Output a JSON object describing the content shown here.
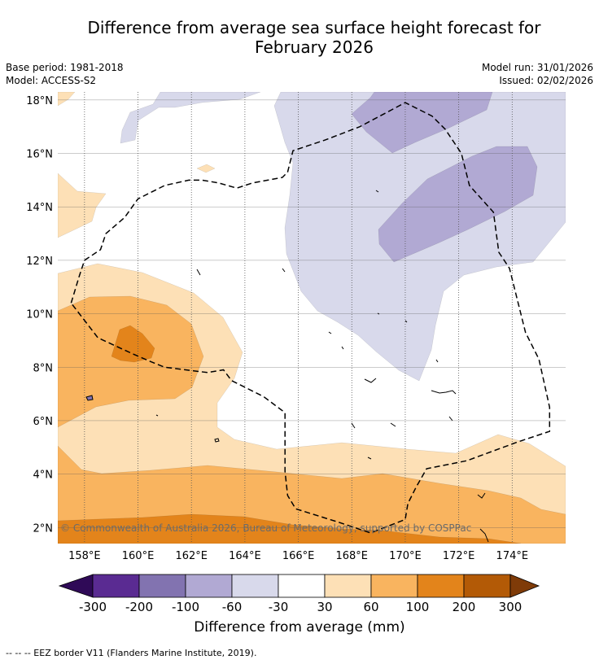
{
  "title": {
    "line1": "Difference from average sea surface height forecast for",
    "line2": "February 2026"
  },
  "info": {
    "base_period": "Base period: 1981-2018",
    "model": "Model: ACCESS-S2",
    "model_run": "Model run: 31/01/2026",
    "issued": "Issued: 02/02/2026"
  },
  "map": {
    "lon_range": [
      157,
      176
    ],
    "lat_range": [
      1.4,
      18.3
    ],
    "lon_ticks": [
      {
        "value": 158,
        "label": "158°E"
      },
      {
        "value": 160,
        "label": "160°E"
      },
      {
        "value": 162,
        "label": "162°E"
      },
      {
        "value": 164,
        "label": "164°E"
      },
      {
        "value": 166,
        "label": "166°E"
      },
      {
        "value": 168,
        "label": "168°E"
      },
      {
        "value": 170,
        "label": "170°E"
      },
      {
        "value": 172,
        "label": "172°E"
      },
      {
        "value": 174,
        "label": "174°E"
      }
    ],
    "lat_ticks": [
      {
        "value": 2,
        "label": "2°N"
      },
      {
        "value": 4,
        "label": "4°N"
      },
      {
        "value": 6,
        "label": "6°N"
      },
      {
        "value": 8,
        "label": "8°N"
      },
      {
        "value": 10,
        "label": "10°N"
      },
      {
        "value": 12,
        "label": "12°N"
      },
      {
        "value": 14,
        "label": "14°N"
      },
      {
        "value": 16,
        "label": "16°N"
      },
      {
        "value": 18,
        "label": "18°N"
      }
    ],
    "copyright": "© Commonwealth of Australia 2026, Bureau of Meteorology, supported by COSPPac",
    "eez_border": [
      [
        157.5,
        10.4
      ],
      [
        157.8,
        11.4
      ],
      [
        158,
        12
      ],
      [
        158.6,
        12.4
      ],
      [
        158.8,
        13
      ],
      [
        159.5,
        13.6
      ],
      [
        160,
        14.3
      ],
      [
        161,
        14.8
      ],
      [
        161.9,
        15
      ],
      [
        162.4,
        15
      ],
      [
        163,
        14.9
      ],
      [
        163.7,
        14.7
      ],
      [
        164.3,
        14.9
      ],
      [
        165.4,
        15.1
      ],
      [
        165.6,
        15.3
      ],
      [
        165.8,
        16.1
      ],
      [
        167,
        16.5
      ],
      [
        168.3,
        17
      ],
      [
        170,
        17.9
      ],
      [
        171,
        17.4
      ],
      [
        171.5,
        16.9
      ],
      [
        172.1,
        16
      ],
      [
        172.4,
        14.8
      ],
      [
        173.3,
        13.8
      ],
      [
        173.5,
        12.3
      ],
      [
        173.9,
        11.7
      ],
      [
        174.5,
        9.3
      ],
      [
        175,
        8.3
      ],
      [
        175.4,
        6.5
      ],
      [
        175.4,
        5.6
      ],
      [
        174.2,
        5.2
      ],
      [
        172.3,
        4.5
      ],
      [
        170.8,
        4.2
      ],
      [
        170.4,
        3.5
      ],
      [
        170.1,
        2.9
      ],
      [
        170,
        2.3
      ],
      [
        168.7,
        1.8
      ],
      [
        167.5,
        2.2
      ],
      [
        165.9,
        2.7
      ],
      [
        165.6,
        3.2
      ],
      [
        165.5,
        4.1
      ],
      [
        165.5,
        6.3
      ],
      [
        164.7,
        6.9
      ],
      [
        163.5,
        7.5
      ],
      [
        163.2,
        7.9
      ],
      [
        162.6,
        7.8
      ],
      [
        161,
        8
      ],
      [
        160.5,
        8.2
      ],
      [
        159.8,
        8.5
      ],
      [
        158.5,
        9.1
      ],
      [
        157.5,
        10.4
      ]
    ],
    "colors": {
      "ocean": "#ffffff",
      "c_p30_60": "#fde0b6",
      "c_p60_100": "#f9b45f",
      "c_p100_200": "#e3841b",
      "c_p200_300": "#b35a06",
      "c_n30_60": "#d8d9eb",
      "c_n60_100": "#b1a9d3",
      "c_n100_200": "#8273b0",
      "c_n200_300": "#5a2b92"
    }
  },
  "colorbar": {
    "bins": [
      {
        "color": "#2f0a57"
      },
      {
        "color": "#5a2b92"
      },
      {
        "color": "#8273b0"
      },
      {
        "color": "#b1a9d3"
      },
      {
        "color": "#d8d9eb"
      },
      {
        "color": "#ffffff"
      },
      {
        "color": "#fde0b6"
      },
      {
        "color": "#f9b45f"
      },
      {
        "color": "#e3841b"
      },
      {
        "color": "#b35a06"
      },
      {
        "color": "#7f3b08"
      }
    ],
    "ticks": [
      "-300",
      "-200",
      "-100",
      "-60",
      "-30",
      "30",
      "60",
      "100",
      "200",
      "300"
    ],
    "label": "Difference from average (mm)"
  },
  "footer": "--  --  -- EEZ border V11 (Flanders Marine Institute, 2019)."
}
